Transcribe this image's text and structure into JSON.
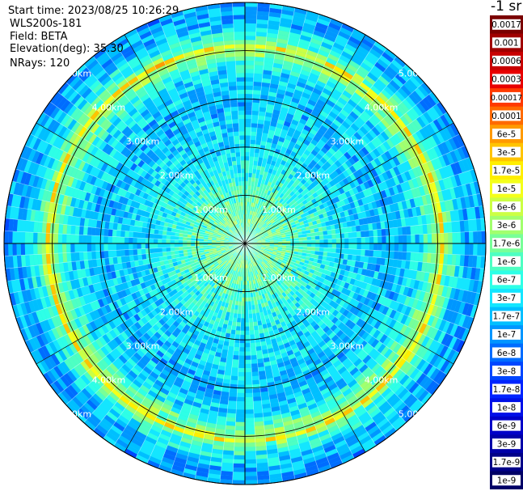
{
  "header": {
    "start_time": "Start time: 2023/08/25 10:26:29",
    "instrument": "WLS200s-181",
    "field": "Field: BETA",
    "elevation": "Elevation(deg): 35.30",
    "nrays": "NRays: 120"
  },
  "colorbar": {
    "units_label": "-1 sr",
    "ticks": [
      "0.0017",
      "0.001",
      "0.0006",
      "0.0003",
      "0.00017",
      "0.0001",
      "6e-5",
      "3e-5",
      "1.7e-5",
      "1e-5",
      "6e-6",
      "3e-6",
      "1.7e-6",
      "1e-6",
      "6e-7",
      "3e-7",
      "1.7e-7",
      "1e-7",
      "6e-8",
      "3e-8",
      "1.7e-8",
      "1e-8",
      "6e-9",
      "3e-9",
      "1.7e-9",
      "1e-9"
    ],
    "colors": [
      "#7a0000",
      "#a00000",
      "#c80000",
      "#e80000",
      "#ff3a00",
      "#ff6a00",
      "#ff9a00",
      "#ffc400",
      "#ffee00",
      "#f4ff1a",
      "#ccff44",
      "#a2ff6e",
      "#78ff98",
      "#4effc2",
      "#2effe6",
      "#14e6ff",
      "#00bfff",
      "#0096ff",
      "#006cff",
      "#0046ff",
      "#0024ff",
      "#0010e8",
      "#0000c8",
      "#0000a8",
      "#000088",
      "#000066"
    ]
  },
  "chart_data": {
    "type": "ppi",
    "field": "BETA",
    "units": "-1 sr",
    "scale": "log",
    "elevation_deg": 35.3,
    "nrays": 120,
    "range_ring_labels": [
      "1.00km",
      "2.00km",
      "3.00km",
      "4.00km",
      "5.00km"
    ],
    "range_rings_km": [
      1,
      2,
      3,
      4,
      5
    ],
    "max_range_km": 5.0,
    "spoke_interval_deg": 30,
    "ring_label_diagonals": [
      "NE",
      "NW",
      "SE",
      "SW"
    ],
    "approx_radial_profile": [
      {
        "range_km": 0.0,
        "beta": 1e-06
      },
      {
        "range_km": 0.5,
        "beta": 1.7e-06
      },
      {
        "range_km": 1.0,
        "beta": 1e-06
      },
      {
        "range_km": 2.0,
        "beta": 3e-07
      },
      {
        "range_km": 3.0,
        "beta": 1.7e-07
      },
      {
        "range_km": 3.6,
        "beta": 3e-07
      },
      {
        "range_km": 4.0,
        "beta": 3e-06
      },
      {
        "range_km": 4.1,
        "beta": 1.7e-05
      },
      {
        "range_km": 4.2,
        "beta": 1e-06
      },
      {
        "range_km": 4.6,
        "beta": 1.7e-07
      },
      {
        "range_km": 5.0,
        "beta": 1e-07
      }
    ]
  }
}
